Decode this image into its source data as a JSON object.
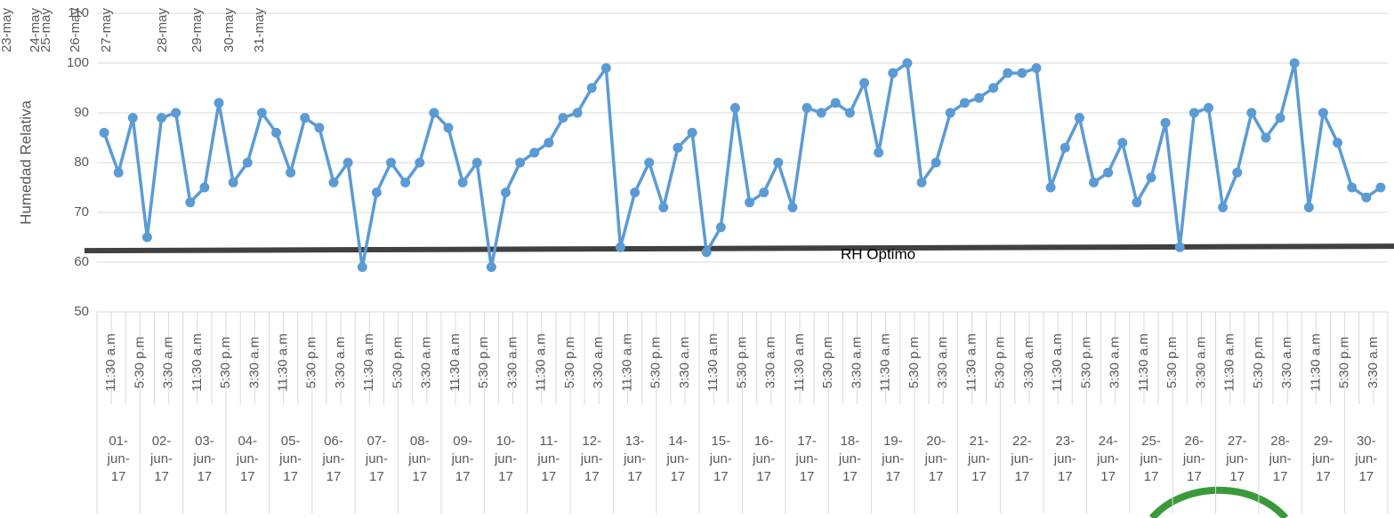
{
  "chart_data": {
    "type": "line",
    "y_label": "Humedad Relativa",
    "annotations": [
      "23-may",
      "24-may",
      "25-may",
      "26-may",
      "27-may",
      "28-may",
      "29-may",
      "30-may",
      "31-may"
    ],
    "categories": [
      "11:30 a.m",
      null,
      "5:30 p.m",
      null,
      "3:30 a.m",
      null,
      "11:30 a.m",
      null,
      "5:30 p.m",
      null,
      "3:30 a.m",
      null,
      "11:30 a.m",
      null,
      "5:30 p.m",
      null,
      "3:30 a.m",
      null,
      "11:30 a.m",
      null,
      "5:30 p.m",
      null,
      "3:30 a.m",
      null,
      "11:30 a.m",
      null,
      "5:30 p.m",
      null,
      "3:30 a.m",
      null,
      "11:30 a.m",
      null,
      "5:30 p.m",
      null,
      "3:30 a.m",
      null,
      "11:30 a.m",
      null,
      "5:30 p.m",
      null,
      "3:30 a.m",
      null,
      "11:30 a.m",
      null,
      "5:30 p.m",
      null,
      "3:30 a.m",
      null,
      "11:30 a.m",
      null,
      "5:30 p.m",
      null,
      "3:30 a.m",
      null,
      "11:30 a.m",
      null,
      "5:30 p.m",
      null,
      "3:30 a.m",
      null,
      "11:30 a.m",
      null,
      "5:30 p.m",
      null,
      "3:30 a.m",
      null,
      "11:30 a.m",
      null,
      "5:30 p.m",
      null,
      "3:30 a.m",
      null,
      "11:30 a.m",
      null,
      "5:30 p.m",
      null,
      "3:30 a.m",
      null,
      "11:30 a.m",
      null,
      "5:30 p.m",
      null,
      "3:30 a.m",
      null,
      "11:30 a.m",
      null,
      "5:30 p.m",
      null,
      "3:30 a.m",
      null
    ],
    "groups": [
      "01-jun-17",
      "02-jun-17",
      "03-jun-17",
      "04-jun-17",
      "05-jun-17",
      "06-jun-17",
      "07-jun-17",
      "08-jun-17",
      "09-jun-17",
      "10-jun-17",
      "11-jun-17",
      "12-jun-17",
      "13-jun-17",
      "14-jun-17",
      "15-jun-17",
      "16-jun-17",
      "17-jun-17",
      "18-jun-17",
      "19-jun-17",
      "20-jun-17",
      "21-jun-17",
      "22-jun-17",
      "23-jun-17",
      "24-jun-17",
      "25-jun-17",
      "26-jun-17",
      "27-jun-17",
      "28-jun-17",
      "29-jun-17",
      "30-jun-17"
    ],
    "series": [
      {
        "color": "#5b9bd5",
        "values": [
          86,
          78,
          89,
          65,
          89,
          90,
          72,
          75,
          92,
          76,
          80,
          90,
          86,
          78,
          89,
          87,
          76,
          80,
          59,
          74,
          80,
          76,
          80,
          90,
          87,
          76,
          80,
          59,
          74,
          80,
          82,
          84,
          89,
          90,
          95,
          99,
          63,
          74,
          80,
          71,
          83,
          86,
          62,
          67,
          91,
          72,
          74,
          80,
          71,
          91,
          90,
          92,
          90,
          96,
          82,
          98,
          100,
          76,
          80,
          90,
          92,
          93,
          95,
          98,
          98,
          99,
          75,
          83,
          89,
          76,
          78,
          84,
          72,
          77,
          88,
          63,
          90,
          91,
          71,
          78,
          90,
          85,
          89,
          100,
          71,
          90,
          84,
          75,
          73,
          75
        ]
      }
    ],
    "reference_line": {
      "label": "RH Optimo",
      "color": "#404040",
      "values": [
        62.3,
        63.2
      ]
    },
    "ylim": [
      50,
      110
    ],
    "yticks": [
      50,
      60,
      70,
      80,
      90,
      100,
      110
    ],
    "grid": true
  }
}
